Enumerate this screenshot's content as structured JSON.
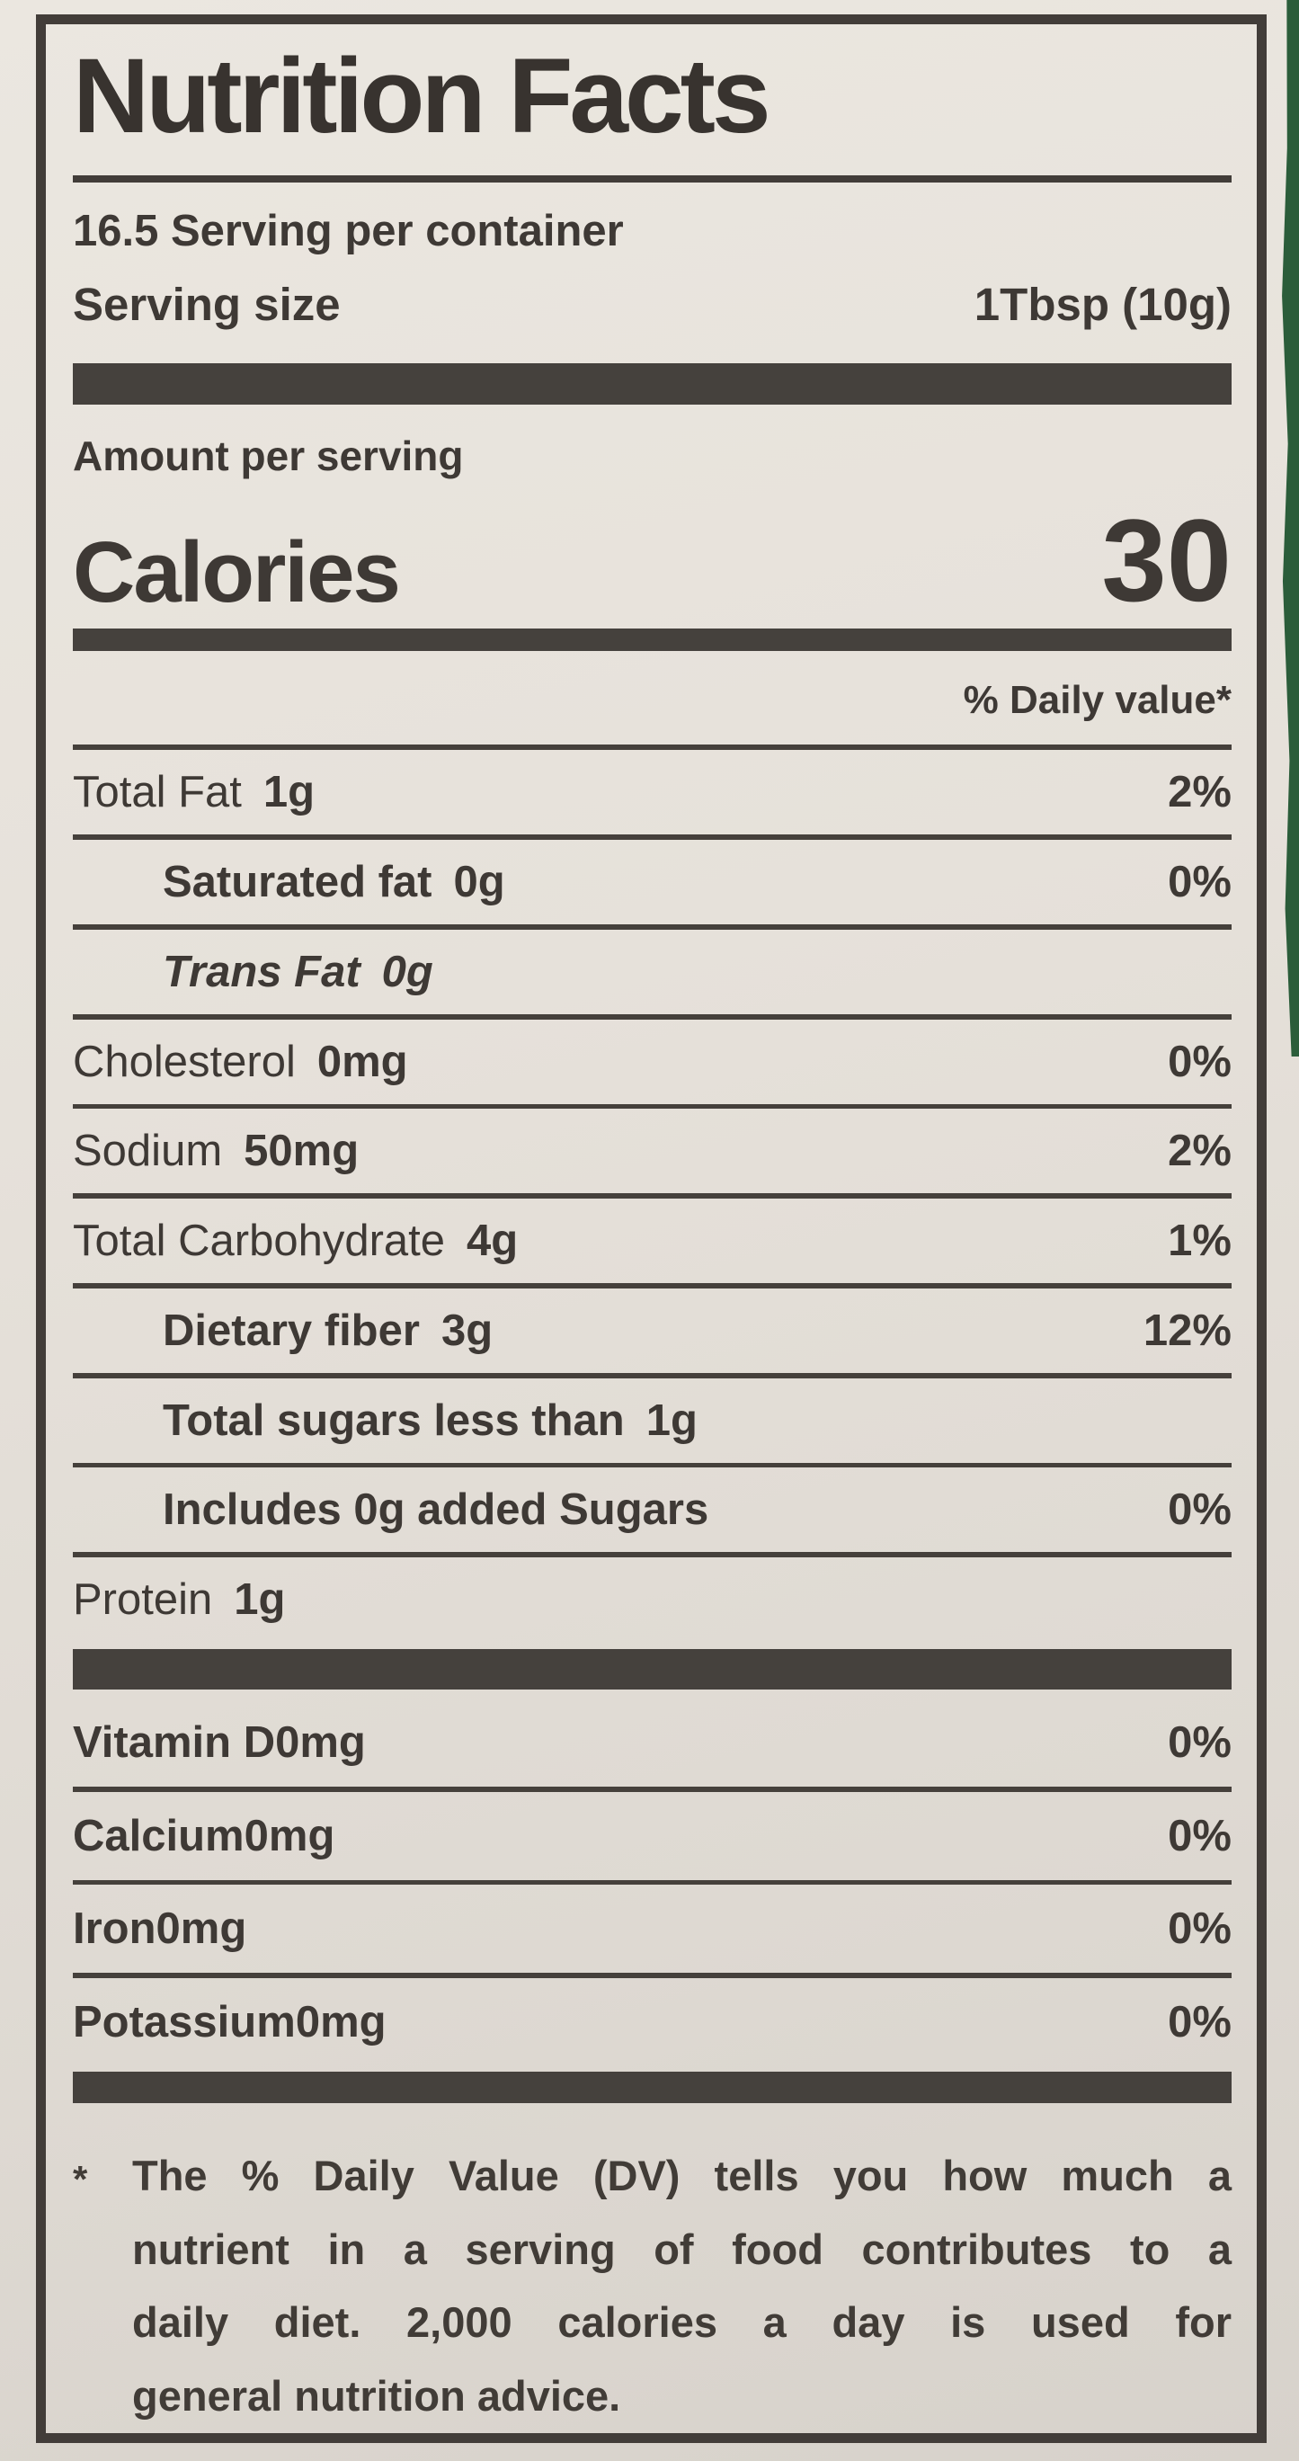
{
  "label": {
    "title": "Nutrition Facts",
    "servings_per_container": "16.5 Serving per container",
    "serving_size_label": "Serving size",
    "serving_size_value": "1Tbsp (10g)",
    "amount_per_serving": "Amount per serving",
    "calories_label": "Calories",
    "calories_value": "30",
    "daily_value_header": "% Daily value*",
    "rows": [
      {
        "name": "Total Fat",
        "amount": "1g",
        "dv": "2%"
      },
      {
        "name": "Saturated fat",
        "amount": "0g",
        "dv": "0%"
      },
      {
        "name": "Trans Fat",
        "amount": "0g",
        "dv": ""
      },
      {
        "name": "Cholesterol",
        "amount": "0mg",
        "dv": "0%"
      },
      {
        "name": "Sodium",
        "amount": "50mg",
        "dv": "2%"
      },
      {
        "name": "Total Carbohydrate",
        "amount": "4g",
        "dv": "1%"
      },
      {
        "name": "Dietary fiber",
        "amount": "3g",
        "dv": "12%"
      },
      {
        "name": "Total sugars less than",
        "amount": "1g",
        "dv": ""
      },
      {
        "name": "Includes 0g added Sugars",
        "amount": "",
        "dv": "0%"
      },
      {
        "name": "Protein",
        "amount": "1g",
        "dv": ""
      }
    ],
    "micronutrients": [
      {
        "name": "Vitamin D",
        "amount": "0mg",
        "dv": "0%"
      },
      {
        "name": "Calcium",
        "amount": "0mg",
        "dv": "0%"
      },
      {
        "name": "Iron",
        "amount": "0mg",
        "dv": "0%"
      },
      {
        "name": "Potassium",
        "amount": "0mg",
        "dv": "0%"
      }
    ],
    "footnote_marker": "*",
    "footnote_lines": [
      "The % Daily Value (DV) tells you how much a",
      "nutrient in a serving of food contributes to a",
      "daily diet.  2,000 calories a day is used for",
      "general nutrition advice."
    ]
  },
  "colors": {
    "paper": "#e6e1da",
    "ink": "#3e3935",
    "surface_green": "#2b5d3a"
  }
}
